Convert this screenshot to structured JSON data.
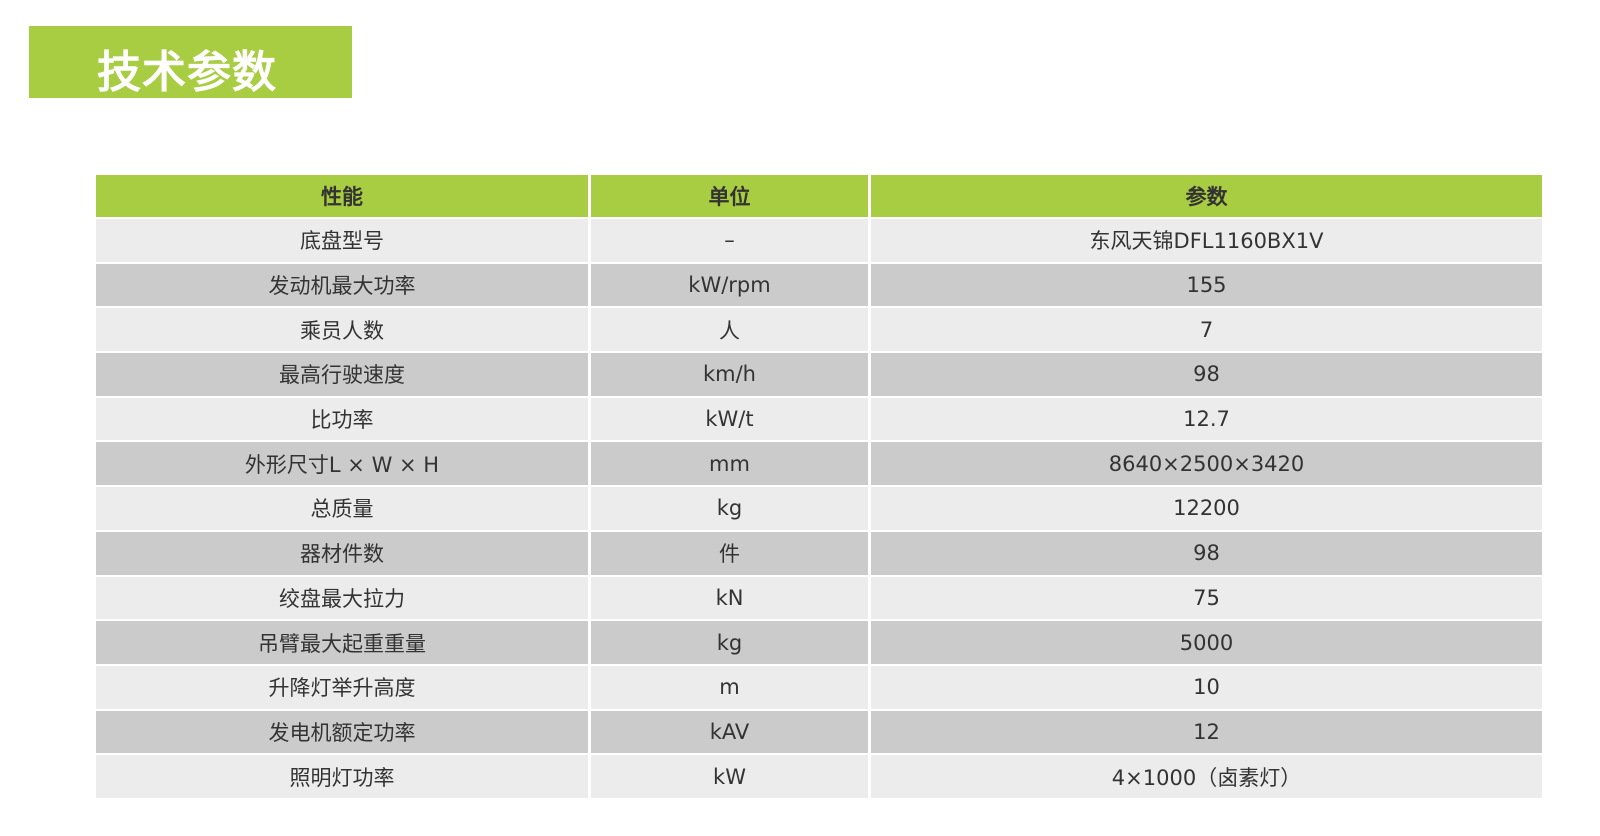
{
  "title": "技术参数",
  "colors": {
    "accent": "#a8cd42",
    "row_light": "#ececec",
    "row_dark": "#cbcbcb"
  },
  "table": {
    "headers": [
      "性能",
      "单位",
      "参数"
    ],
    "rows": [
      [
        "底盘型号",
        "–",
        "东风天锦DFL1160BX1V"
      ],
      [
        "发动机最大功率",
        "kW/rpm",
        "155"
      ],
      [
        "乘员人数",
        "人",
        "7"
      ],
      [
        "最高行驶速度",
        "km/h",
        "98"
      ],
      [
        "比功率",
        "kW/t",
        "12.7"
      ],
      [
        "外形尺寸L × W × H",
        "mm",
        "8640×2500×3420"
      ],
      [
        "总质量",
        "kg",
        "12200"
      ],
      [
        "器材件数",
        "件",
        "98"
      ],
      [
        "绞盘最大拉力",
        "kN",
        "75"
      ],
      [
        "吊臂最大起重重量",
        "kg",
        "5000"
      ],
      [
        "升降灯举升高度",
        "m",
        "10"
      ],
      [
        "发电机额定功率",
        "kAV",
        "12"
      ],
      [
        "照明灯功率",
        "kW",
        "4×1000（卤素灯）"
      ]
    ]
  }
}
